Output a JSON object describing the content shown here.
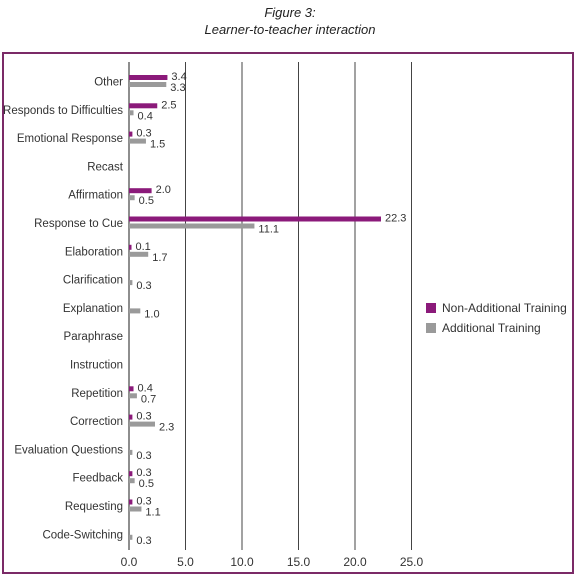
{
  "figure_label": "Figure 3:",
  "figure_title": "Learner-to-teacher interaction",
  "colors": {
    "non_additional": "#8b1a7a",
    "additional": "#9a9a9a",
    "border": "#7b2a67",
    "grid": "#444444"
  },
  "chart_data": {
    "type": "bar",
    "orientation": "horizontal",
    "title": "Learner-to-teacher interaction",
    "xlabel": "",
    "ylabel": "",
    "xlim": [
      0,
      25
    ],
    "xticks": [
      "0.0",
      "5.0",
      "10.0",
      "15.0",
      "20.0",
      "25.0"
    ],
    "grid": true,
    "legend_position": "right",
    "categories": [
      "Other",
      "Responds to Difficulties",
      "Emotional Response",
      "Recast",
      "Affirmation",
      "Response to Cue",
      "Elaboration",
      "Clarification",
      "Explanation",
      "Paraphrase",
      "Instruction",
      "Repetition",
      "Correction",
      "Evaluation Questions",
      "Feedback",
      "Requesting",
      "Code-Switching"
    ],
    "series": [
      {
        "name": "Non-Additional Training",
        "values": [
          3.4,
          2.5,
          0.3,
          null,
          2.0,
          22.3,
          0.1,
          null,
          null,
          null,
          null,
          0.4,
          0.3,
          null,
          0.3,
          0.3,
          null
        ],
        "labels": [
          "3.4",
          "2.5",
          "0.3",
          "",
          "2.0",
          "22.3",
          "0.1",
          "",
          "",
          "",
          "",
          "0.4",
          "0.3",
          "",
          "0.3",
          "0.3",
          ""
        ]
      },
      {
        "name": "Additional Training",
        "values": [
          3.3,
          0.4,
          1.5,
          null,
          0.5,
          11.1,
          1.7,
          0.3,
          1.0,
          null,
          null,
          0.7,
          2.3,
          0.3,
          0.5,
          1.1,
          0.3
        ],
        "labels": [
          "3.3",
          "0.4",
          "1.5",
          "",
          "0.5",
          "11.1",
          "1.7",
          "0.3",
          "1.0",
          "",
          "",
          "0.7",
          "2.3",
          "0.3",
          "0.5",
          "1.1",
          "0.3"
        ]
      }
    ]
  }
}
